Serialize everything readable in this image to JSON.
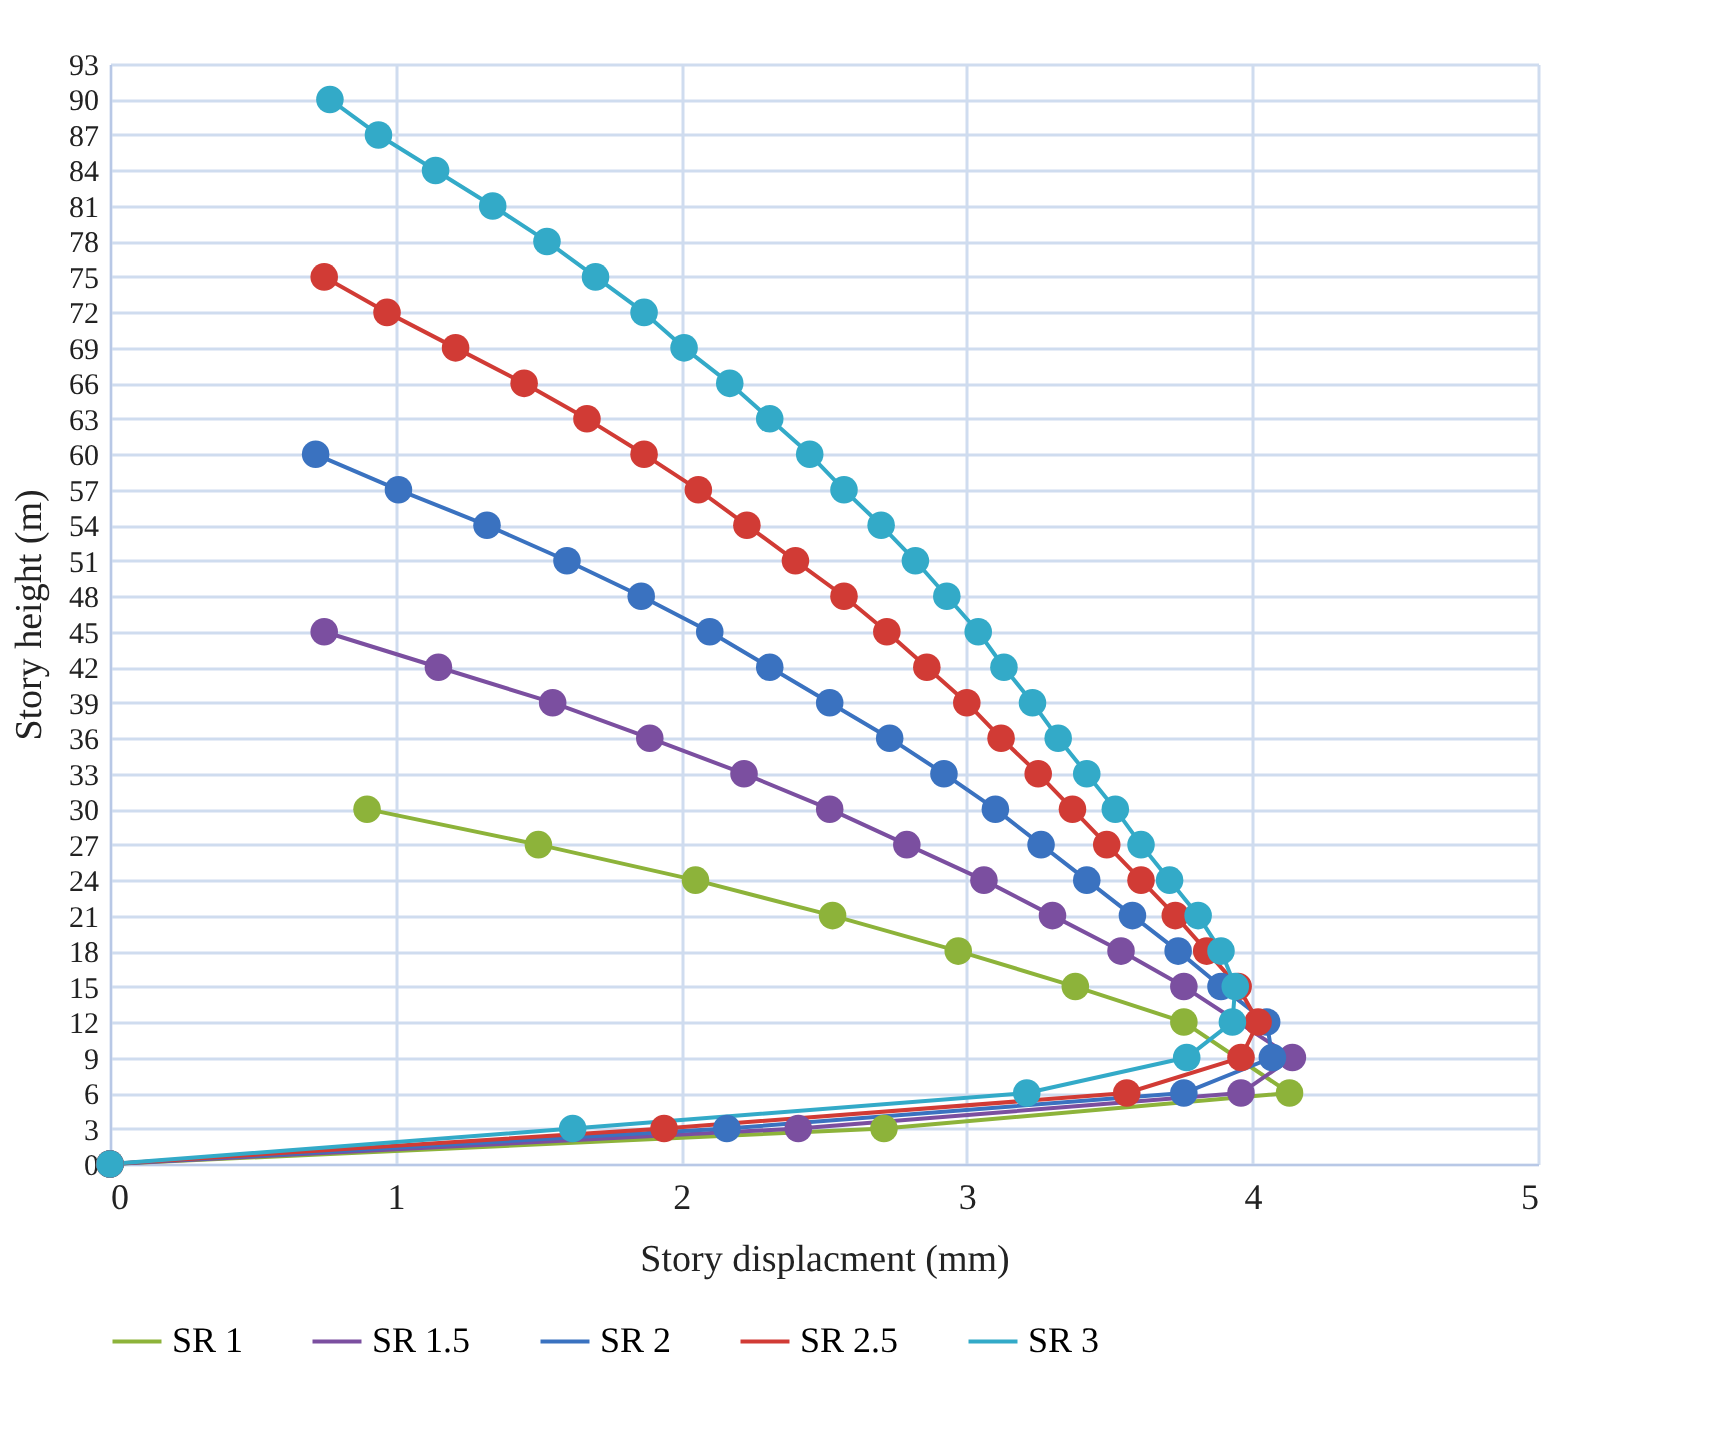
{
  "chart_data": {
    "type": "line",
    "xlabel": "Story displacment (mm)",
    "ylabel": "Story height (m)",
    "xlim": [
      0,
      5
    ],
    "xticks": [
      0,
      1,
      2,
      3,
      4,
      5
    ],
    "ylim": [
      0,
      93
    ],
    "yticks": [
      0,
      3,
      6,
      9,
      12,
      15,
      18,
      21,
      24,
      27,
      30,
      33,
      36,
      39,
      42,
      45,
      48,
      51,
      54,
      57,
      60,
      63,
      66,
      69,
      72,
      75,
      78,
      81,
      84,
      87,
      90,
      93
    ],
    "grid": true,
    "legend": "bottom",
    "marker": "circle",
    "line_style": "solid",
    "series": [
      {
        "name": "SR 1",
        "color": "#8db33a",
        "x": [
          0.9,
          1.5,
          2.05,
          2.53,
          2.97,
          3.38,
          3.76,
          4.13,
          2.71,
          0
        ],
        "values": [
          30,
          27,
          24,
          21,
          18,
          15,
          12,
          6,
          3,
          0
        ]
      },
      {
        "name": "SR 1.5",
        "color": "#7b4fa0",
        "x": [
          0.75,
          1.15,
          1.55,
          1.89,
          2.22,
          2.52,
          2.79,
          3.06,
          3.3,
          3.54,
          3.76,
          4.14,
          3.96,
          2.41,
          0
        ],
        "values": [
          45,
          42,
          39,
          36,
          33,
          30,
          27,
          24,
          21,
          18,
          15,
          9,
          6,
          3,
          0
        ]
      },
      {
        "name": "SR 2",
        "color": "#3a72c0",
        "x": [
          0.72,
          1.01,
          1.32,
          1.6,
          1.86,
          2.1,
          2.31,
          2.52,
          2.73,
          2.92,
          3.1,
          3.26,
          3.42,
          3.58,
          3.74,
          3.89,
          4.05,
          4.07,
          3.76,
          2.16,
          0
        ],
        "values": [
          60,
          57,
          54,
          51,
          48,
          45,
          42,
          39,
          36,
          33,
          30,
          27,
          24,
          21,
          18,
          15,
          12,
          9,
          6,
          3,
          0
        ]
      },
      {
        "name": "SR 2.5",
        "color": "#d13b35",
        "x": [
          0.75,
          0.97,
          1.21,
          1.45,
          1.67,
          1.87,
          2.06,
          2.23,
          2.4,
          2.57,
          2.72,
          2.86,
          3.0,
          3.12,
          3.25,
          3.37,
          3.49,
          3.61,
          3.73,
          3.84,
          3.95,
          4.02,
          3.96,
          3.56,
          1.94,
          0
        ],
        "values": [
          75,
          72,
          69,
          66,
          63,
          60,
          57,
          54,
          51,
          48,
          45,
          42,
          39,
          36,
          33,
          30,
          27,
          24,
          21,
          18,
          15,
          12,
          9,
          6,
          3,
          0
        ]
      },
      {
        "name": "SR 3",
        "color": "#33aac8",
        "x": [
          0.77,
          0.94,
          1.14,
          1.34,
          1.53,
          1.7,
          1.87,
          2.01,
          2.17,
          2.31,
          2.45,
          2.57,
          2.7,
          2.82,
          2.93,
          3.04,
          3.13,
          3.23,
          3.32,
          3.42,
          3.52,
          3.61,
          3.71,
          3.81,
          3.89,
          3.94,
          3.93,
          3.77,
          3.21,
          1.62,
          0
        ],
        "values": [
          90,
          87,
          84,
          81,
          78,
          75,
          72,
          69,
          66,
          63,
          60,
          57,
          54,
          51,
          48,
          45,
          42,
          39,
          36,
          33,
          30,
          27,
          24,
          21,
          18,
          15,
          12,
          9,
          6,
          3,
          0
        ]
      }
    ]
  }
}
